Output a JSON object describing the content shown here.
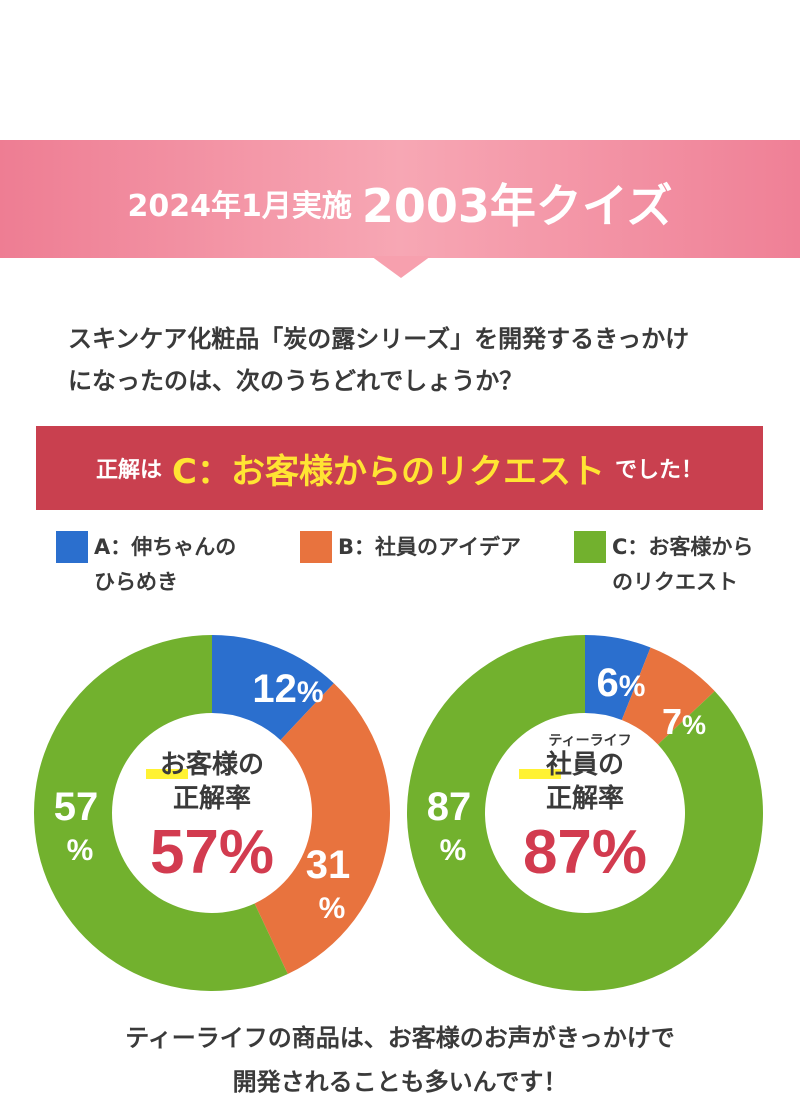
{
  "header": {
    "date_label": "2024年1月実施",
    "quiz_title": "2003年クイズ"
  },
  "question": {
    "line1": "スキンケア化粧品「炭の露シリーズ」を開発するきっかけ",
    "line2": "になったのは、次のうちどれでしょうか？"
  },
  "answer": {
    "prefix": "正解は",
    "main": "C：お客様からのリクエスト",
    "suffix": "でした！"
  },
  "legend": [
    {
      "line1": "A：伸ちゃんの",
      "line2": "ひらめき",
      "color": "#2b6fce"
    },
    {
      "line1": "B：社員のアイデア",
      "line2": "",
      "color": "#e8733e"
    },
    {
      "line1": "C：お客様から",
      "line2": "のリクエスト",
      "color": "#72b12e"
    }
  ],
  "chart_data": [
    {
      "type": "pie",
      "categories": [
        "A：伸ちゃんのひらめき",
        "B：社員のアイデア",
        "C：お客様からのリクエスト"
      ],
      "values": [
        12,
        31,
        57
      ],
      "labels": [
        "12%",
        "31%",
        "57%"
      ],
      "center": {
        "line1": "お客様の",
        "line2": "正解率",
        "rate": "57%"
      }
    },
    {
      "type": "pie",
      "categories": [
        "A：伸ちゃんのひらめき",
        "B：社員のアイデア",
        "C：お客様からのリクエスト"
      ],
      "values": [
        6,
        7,
        87
      ],
      "labels": [
        "6%",
        "7%",
        "87%"
      ],
      "center": {
        "ruby": "ティーライフ",
        "line1": "社員の",
        "line2": "正解率",
        "rate": "87%"
      }
    }
  ],
  "footer": {
    "line1": "ティーライフの商品は、お客様のお声がきっかけで",
    "line2": "開発されることも多いんです！"
  }
}
